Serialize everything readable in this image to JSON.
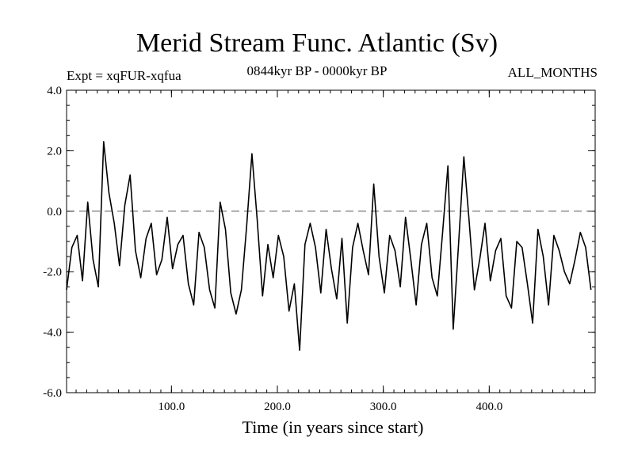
{
  "chart_data": {
    "type": "line",
    "title": "Merid Stream Func. Atlantic (Sv)",
    "expt_label": "Expt = xqFUR-xqfua",
    "period_label": "0844kyr BP - 0000kyr BP",
    "months_label": "ALL_MONTHS",
    "xlabel": "Time (in years since start)",
    "ylabel": "",
    "xlim": [
      1,
      500
    ],
    "ylim": [
      -6.0,
      4.0
    ],
    "xticks": [
      100,
      200,
      300,
      400
    ],
    "xtick_labels": [
      "100.0",
      "200.0",
      "300.0",
      "400.0"
    ],
    "yticks": [
      -6,
      -4,
      -2,
      0,
      2,
      4
    ],
    "ytick_labels": [
      "-6.0",
      "-4.0",
      "-2.0",
      "0.0",
      "2.0",
      "4.0"
    ],
    "reference_line": {
      "y": 0.0,
      "style": "dashed"
    },
    "series": [
      {
        "name": "Merid Stream Func. Atlantic",
        "x_start": 1,
        "x_step": 5,
        "values": [
          -2.6,
          -1.2,
          -0.8,
          -2.3,
          0.3,
          -1.6,
          -2.5,
          2.3,
          0.6,
          -0.4,
          -1.8,
          0.2,
          1.2,
          -1.3,
          -2.2,
          -0.9,
          -0.4,
          -2.1,
          -1.6,
          -0.2,
          -1.9,
          -1.1,
          -0.8,
          -2.4,
          -3.1,
          -0.7,
          -1.2,
          -2.6,
          -3.2,
          0.3,
          -0.6,
          -2.7,
          -3.4,
          -2.6,
          -0.5,
          1.9,
          -0.3,
          -2.8,
          -1.1,
          -2.2,
          -0.8,
          -1.5,
          -3.3,
          -2.4,
          -4.6,
          -1.1,
          -0.4,
          -1.2,
          -2.7,
          -0.6,
          -1.9,
          -2.9,
          -0.9,
          -3.7,
          -1.2,
          -0.4,
          -1.3,
          -2.1,
          0.9,
          -1.5,
          -2.7,
          -0.8,
          -1.3,
          -2.5,
          -0.2,
          -1.6,
          -3.1,
          -1.1,
          -0.4,
          -2.2,
          -2.8,
          -0.7,
          1.5,
          -3.9,
          -1.1,
          1.8,
          -0.3,
          -2.6,
          -1.6,
          -0.4,
          -2.3,
          -1.3,
          -0.9,
          -2.8,
          -3.2,
          -1.0,
          -1.2,
          -2.4,
          -3.7,
          -0.6,
          -1.5,
          -3.1,
          -0.8,
          -1.3,
          -2.0,
          -2.4,
          -1.6,
          -0.7,
          -1.2,
          -2.6
        ]
      }
    ]
  }
}
